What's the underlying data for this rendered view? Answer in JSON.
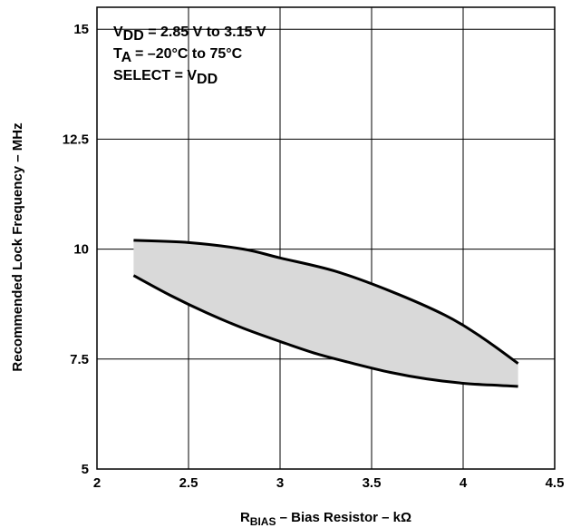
{
  "chart_data": {
    "type": "area",
    "xlabel_main": "R",
    "xlabel_sub": "BIAS",
    "xlabel_rest": " – Bias Resistor – kΩ",
    "ylabel": "Recommended Lock Frequency – MHz",
    "xlim": [
      2,
      4.5
    ],
    "ylim": [
      5,
      15.5
    ],
    "x_ticks": [
      "2",
      "2.5",
      "3",
      "3.5",
      "4",
      "4.5"
    ],
    "y_ticks": [
      "5",
      "7.5",
      "10",
      "12.5",
      "15"
    ],
    "grid": true,
    "annotations": [
      {
        "parts": [
          {
            "text": "V"
          },
          {
            "text": "DD",
            "sub": true
          },
          {
            "text": " = 2.85 V to 3.15 V"
          }
        ]
      },
      {
        "parts": [
          {
            "text": "T"
          },
          {
            "text": "A",
            "sub": true
          },
          {
            "text": " = –20°C to 75°C"
          }
        ]
      },
      {
        "parts": [
          {
            "text": "SELECT = V"
          },
          {
            "text": "DD",
            "sub": true
          }
        ]
      }
    ],
    "series": [
      {
        "x": [
          2.2,
          2.5,
          2.8,
          3.0,
          3.3,
          3.6,
          3.9,
          4.1,
          4.3
        ],
        "values": [
          10.2,
          10.15,
          10.0,
          9.8,
          9.5,
          9.05,
          8.5,
          8.0,
          7.4
        ]
      },
      {
        "x": [
          2.2,
          2.4,
          2.6,
          2.8,
          3.0,
          3.2,
          3.4,
          3.6,
          3.8,
          4.0,
          4.2,
          4.3
        ],
        "values": [
          9.4,
          8.95,
          8.55,
          8.2,
          7.9,
          7.62,
          7.4,
          7.2,
          7.05,
          6.95,
          6.9,
          6.88
        ]
      }
    ],
    "fill_color": "#d9d9d9",
    "line_color": "#000000"
  }
}
